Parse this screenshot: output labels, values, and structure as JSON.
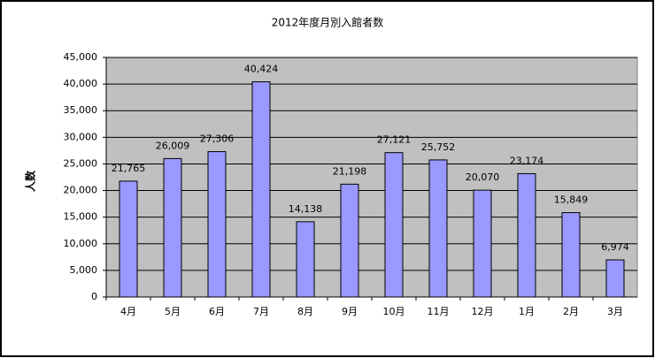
{
  "chart_data": {
    "type": "bar",
    "title": "2012年度月別入館者数",
    "y_label": "人数",
    "categories": [
      "4月",
      "5月",
      "6月",
      "7月",
      "8月",
      "9月",
      "10月",
      "11月",
      "12月",
      "1月",
      "2月",
      "3月"
    ],
    "values": [
      21765,
      26009,
      27306,
      40424,
      14138,
      21198,
      27121,
      25752,
      20070,
      23174,
      15849,
      6974
    ],
    "value_labels": [
      "21,765",
      "26,009",
      "27,306",
      "40,424",
      "14,138",
      "21,198",
      "27,121",
      "25,752",
      "20,070",
      "23,174",
      "15,849",
      "6,974"
    ],
    "color": "#9999ff",
    "ylim": [
      0,
      45000
    ],
    "yticks": [
      0,
      {
        "value": 5000,
        "label": "5,000"
      },
      {
        "value": 10000,
        "label": "10,000"
      },
      {
        "value": 15000,
        "label": "15,000"
      },
      {
        "value": 20000,
        "label": "20,000"
      },
      {
        "value": 25000,
        "label": "25,000"
      },
      {
        "value": 30000,
        "label": "30,000"
      },
      {
        "value": 35000,
        "label": "35,000"
      },
      {
        "value": 40000,
        "label": "40,000"
      },
      {
        "value": 45000,
        "label": "45,000"
      }
    ],
    "grid": true
  }
}
